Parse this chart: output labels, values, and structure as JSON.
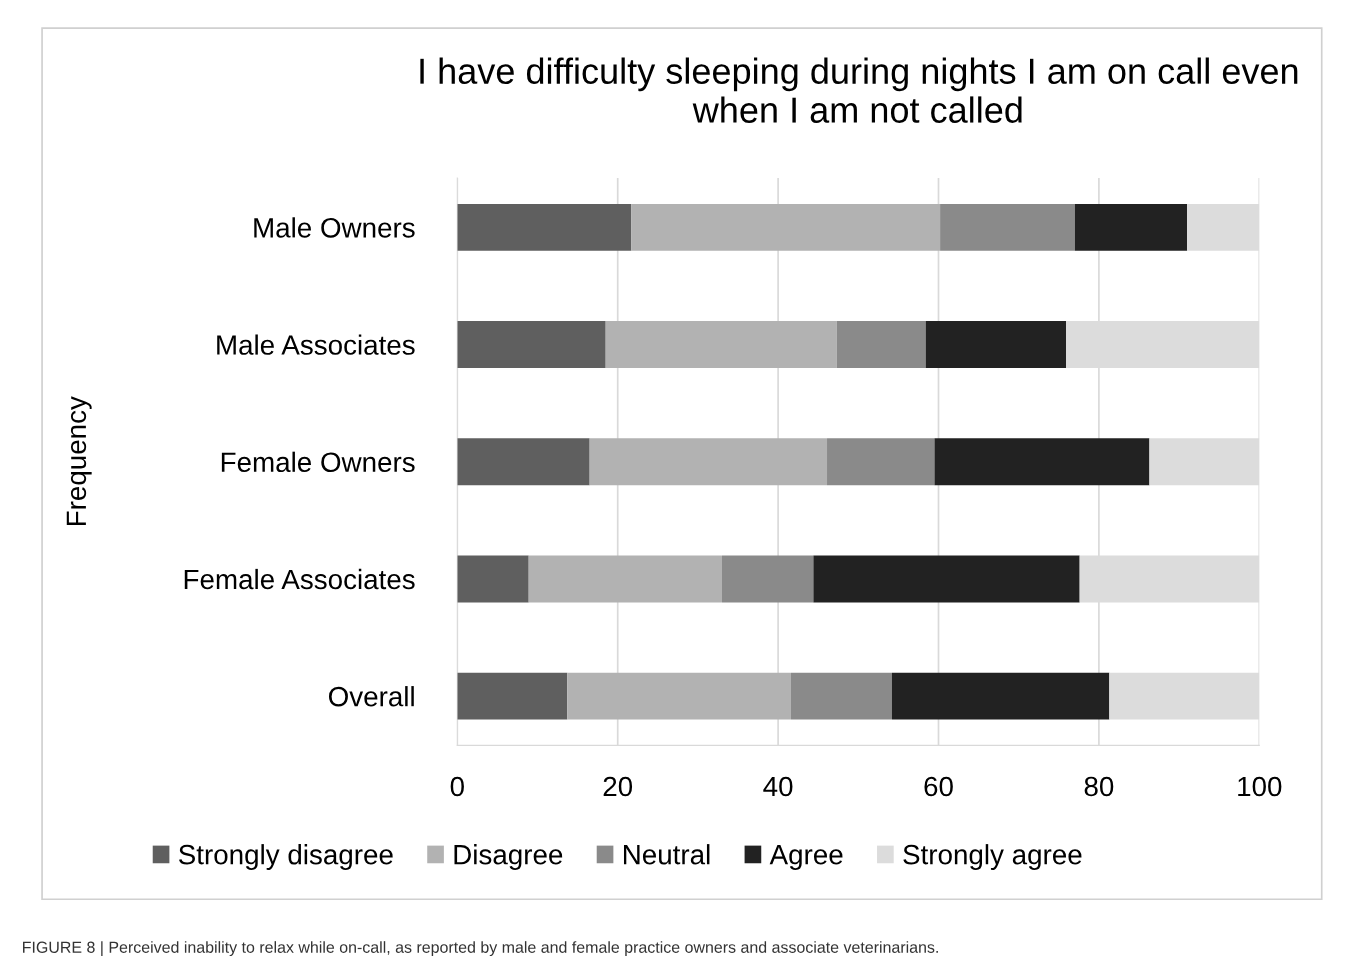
{
  "chart_data": {
    "type": "bar",
    "orientation": "horizontal",
    "stacked": true,
    "title": "I have difficulty sleeping during nights I am on call even\nwhen I am not called",
    "ylabel": "Frequency",
    "categories": [
      "Male Owners",
      "Male Associates",
      "Female Owners",
      "Female Associates",
      "Overall"
    ],
    "series": [
      {
        "name": "Strongly disagree",
        "color": "#5f5f5f",
        "values": [
          21.7,
          18.5,
          16.5,
          8.9,
          13.7
        ]
      },
      {
        "name": "Disagree",
        "color": "#b2b2b2",
        "values": [
          38.5,
          28.8,
          29.6,
          24.1,
          27.9
        ]
      },
      {
        "name": "Neutral",
        "color": "#8a8a8a",
        "values": [
          16.8,
          11.1,
          13.4,
          11.4,
          12.6
        ]
      },
      {
        "name": "Agree",
        "color": "#222222",
        "values": [
          14.0,
          17.5,
          26.8,
          33.2,
          27.1
        ]
      },
      {
        "name": "Strongly agree",
        "color": "#dcdcdc",
        "values": [
          9.0,
          24.1,
          13.7,
          22.4,
          18.7
        ]
      }
    ],
    "xlim": [
      0,
      100
    ],
    "xticks": [
      0,
      20,
      40,
      60,
      80,
      100
    ],
    "grid": "x",
    "legend": "bottom",
    "annotations": [
      "FIGURE 8 | Perceived inability to relax while on-call, as reported by male and female practice owners and associate veterinarians."
    ]
  }
}
